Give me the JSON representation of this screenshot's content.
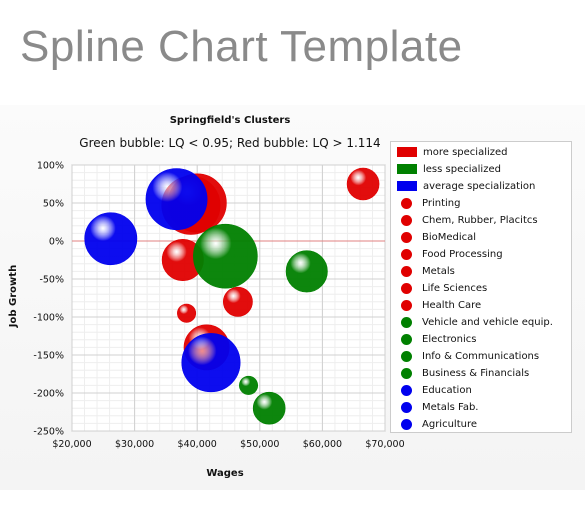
{
  "page": {
    "title": "Spline Chart Template"
  },
  "chart_data": {
    "type": "bubble",
    "title": "Springfield's Clusters",
    "subtitle": "Green bubble: LQ < 0.95; Red bubble: LQ > 1.114",
    "xlabel": "Wages",
    "ylabel": "Job Growth",
    "xlim": [
      20000,
      70000
    ],
    "ylim": [
      -250,
      100
    ],
    "x_ticks": [
      "$20,000",
      "$30,000",
      "$40,000",
      "$50,000",
      "$60,000",
      "$70,000"
    ],
    "y_ticks": [
      "100%",
      "50%",
      "0%",
      "-50%",
      "-100%",
      "-150%",
      "-200%",
      "-250%"
    ],
    "grid": true,
    "legend_position": "right",
    "colors": {
      "more specialized": "#e00000",
      "less specialized": "#008000",
      "average specialization": "#0000ee"
    },
    "legend": [
      {
        "label": "more specialized",
        "color": "#e00000",
        "shape": "rect"
      },
      {
        "label": "less specialized",
        "color": "#008000",
        "shape": "rect"
      },
      {
        "label": "average specialization",
        "color": "#0000ee",
        "shape": "rect"
      },
      {
        "label": "Printing",
        "color": "#e00000",
        "shape": "dot"
      },
      {
        "label": "Chem, Rubber, Placitcs",
        "color": "#e00000",
        "shape": "dot"
      },
      {
        "label": "BioMedical",
        "color": "#e00000",
        "shape": "dot"
      },
      {
        "label": "Food Processing",
        "color": "#e00000",
        "shape": "dot"
      },
      {
        "label": "Metals",
        "color": "#e00000",
        "shape": "dot"
      },
      {
        "label": "Life Sciences",
        "color": "#e00000",
        "shape": "dot"
      },
      {
        "label": "Health Care",
        "color": "#e00000",
        "shape": "dot"
      },
      {
        "label": "Vehicle and vehicle equip.",
        "color": "#008000",
        "shape": "dot"
      },
      {
        "label": "Electronics",
        "color": "#008000",
        "shape": "dot"
      },
      {
        "label": "Info & Communications",
        "color": "#008000",
        "shape": "dot"
      },
      {
        "label": "Business & Financials",
        "color": "#008000",
        "shape": "dot"
      },
      {
        "label": "Education",
        "color": "#0000ee",
        "shape": "dot"
      },
      {
        "label": "Metals Fab.",
        "color": "#0000ee",
        "shape": "dot"
      },
      {
        "label": "Agriculture",
        "color": "#0000ee",
        "shape": "dot"
      }
    ],
    "series": [
      {
        "name": "Printing",
        "group": "more specialized",
        "x": 66500,
        "y": 75,
        "size": 3
      },
      {
        "name": "Chem, Rubber, Placitcs",
        "group": "more specialized",
        "x": 39000,
        "y": 47,
        "size": 10
      },
      {
        "name": "BioMedical",
        "group": "more specialized",
        "x": 40000,
        "y": 50,
        "size": 10
      },
      {
        "name": "Food Processing",
        "group": "more specialized",
        "x": 37700,
        "y": -25,
        "size": 5
      },
      {
        "name": "Metals",
        "group": "more specialized",
        "x": 38300,
        "y": -95,
        "size": 1
      },
      {
        "name": "Life Sciences",
        "group": "more specialized",
        "x": 46500,
        "y": -80,
        "size": 2.5
      },
      {
        "name": "Health Care",
        "group": "more specialized",
        "x": 41500,
        "y": -140,
        "size": 6
      },
      {
        "name": "Vehicle and vehicle equip.",
        "group": "less specialized",
        "x": 44500,
        "y": -20,
        "size": 12
      },
      {
        "name": "Electronics",
        "group": "less specialized",
        "x": 57500,
        "y": -40,
        "size": 5
      },
      {
        "name": "Info & Communications",
        "group": "less specialized",
        "x": 48200,
        "y": -190,
        "size": 1
      },
      {
        "name": "Business & Financials",
        "group": "less specialized",
        "x": 51500,
        "y": -220,
        "size": 3
      },
      {
        "name": "Education",
        "group": "average specialization",
        "x": 26200,
        "y": 3,
        "size": 8
      },
      {
        "name": "Metals Fab.",
        "group": "average specialization",
        "x": 36700,
        "y": 55,
        "size": 11
      },
      {
        "name": "Agriculture",
        "group": "average specialization",
        "x": 42200,
        "y": -160,
        "size": 10
      }
    ]
  }
}
